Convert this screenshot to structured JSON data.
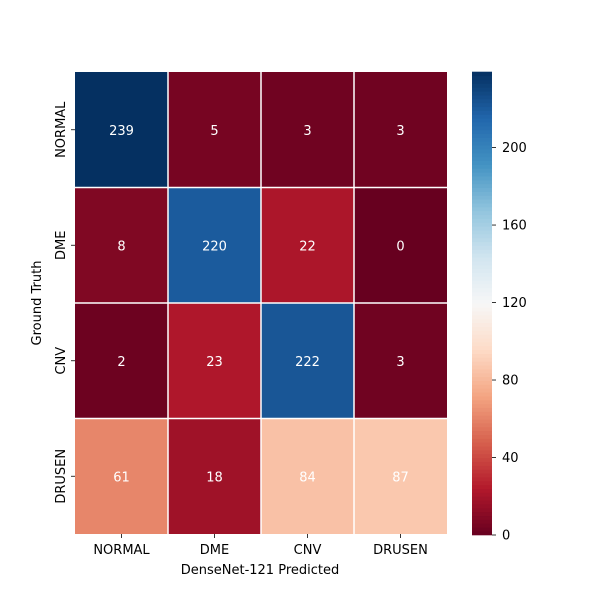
{
  "chart_data": {
    "type": "heatmap",
    "title": "",
    "xlabel": "DenseNet-121 Predicted",
    "ylabel": "Ground Truth",
    "x_categories": [
      "NORMAL",
      "DME",
      "CNV",
      "DRUSEN"
    ],
    "y_categories": [
      "NORMAL",
      "DME",
      "CNV",
      "DRUSEN"
    ],
    "values": [
      [
        239,
        5,
        3,
        3
      ],
      [
        8,
        220,
        22,
        0
      ],
      [
        2,
        23,
        222,
        3
      ],
      [
        61,
        18,
        84,
        87
      ]
    ],
    "colorbar": {
      "range": [
        0,
        239
      ],
      "ticks": [
        "0",
        "40",
        "80",
        "120",
        "160",
        "200"
      ],
      "colormap": "RdBu"
    },
    "annotation_color": "#ffffff"
  }
}
